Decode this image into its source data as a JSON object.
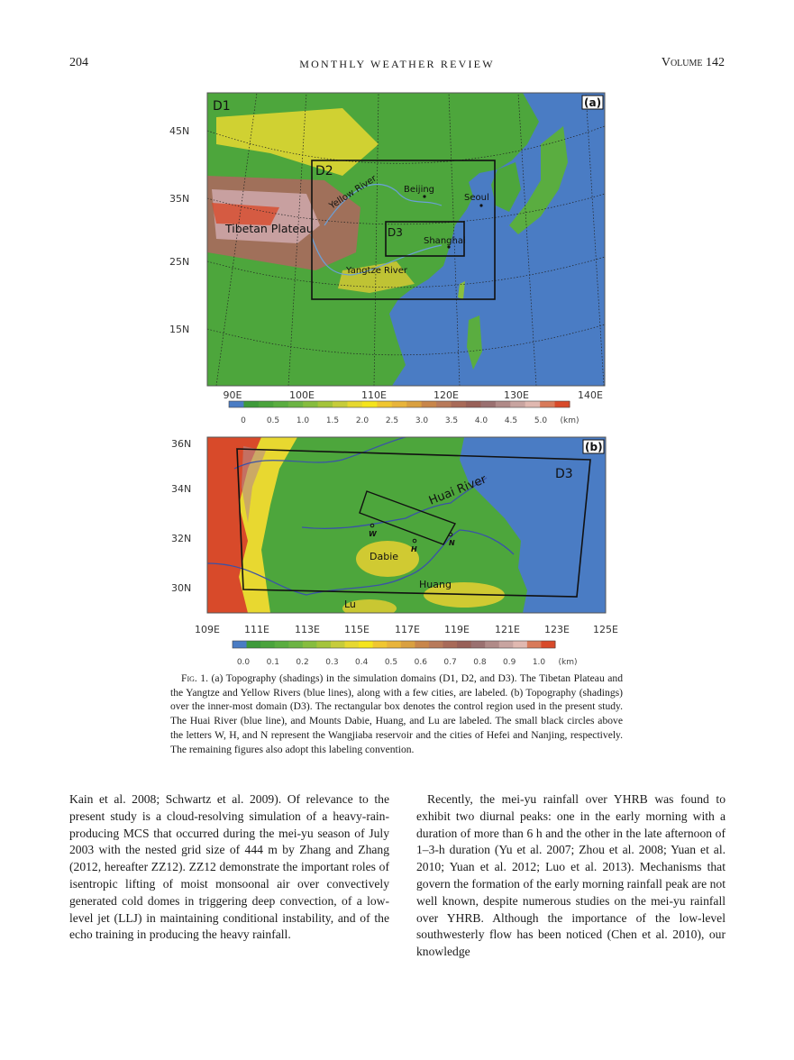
{
  "header": {
    "page_number": "204",
    "journal": "MONTHLY WEATHER REVIEW",
    "volume": "Volume 142"
  },
  "figure": {
    "panel_a": {
      "tag": "(a)",
      "domain_labels": [
        "D1",
        "D2",
        "D3"
      ],
      "place_labels": {
        "tibet": "Tibetan Plateau",
        "yellow": "Yellow River",
        "yangtze": "Yangtze River",
        "beijing": "Beijing",
        "seoul": "Seoul",
        "shanghai": "Shanghai"
      },
      "lat_ticks": [
        "45N",
        "35N",
        "25N",
        "15N"
      ],
      "lon_ticks": [
        "90E",
        "100E",
        "110E",
        "120E",
        "130E",
        "140E"
      ],
      "colorbar_ticks": [
        "0",
        "0.5",
        "1.0",
        "1.5",
        "2.0",
        "2.5",
        "3.0",
        "3.5",
        "4.0",
        "4.5",
        "5.0"
      ],
      "colorbar_unit": "(km)"
    },
    "panel_b": {
      "tag": "(b)",
      "domain_label": "D3",
      "place_labels": {
        "huai": "Huai River",
        "dabie": "Dabie",
        "huang": "Huang",
        "lu": "Lu",
        "w": "W",
        "h": "H",
        "n": "N"
      },
      "lat_ticks": [
        "36N",
        "34N",
        "32N",
        "30N"
      ],
      "lon_ticks": [
        "109E",
        "111E",
        "113E",
        "115E",
        "117E",
        "119E",
        "121E",
        "123E",
        "125E"
      ],
      "colorbar_ticks": [
        "0.0",
        "0.1",
        "0.2",
        "0.3",
        "0.4",
        "0.5",
        "0.6",
        "0.7",
        "0.8",
        "0.9",
        "1.0"
      ],
      "colorbar_unit": "(km)"
    },
    "colorbar_colors": [
      "#4a7cc4",
      "#3e9a3a",
      "#4aa33c",
      "#5aad40",
      "#6cb444",
      "#86bd3e",
      "#a4c43a",
      "#c6cc3a",
      "#e6d830",
      "#f5e41c",
      "#f0c630",
      "#e8b43a",
      "#d9a040",
      "#c8864a",
      "#b87a5a",
      "#a86a58",
      "#986058",
      "#9a7070",
      "#b08a88",
      "#c8a4a0",
      "#e0b8b0",
      "#d87a5a",
      "#d84a2a"
    ],
    "caption_label": "Fig. 1.",
    "caption_text": " (a) Topography (shadings) in the simulation domains (D1, D2, and D3). The Tibetan Plateau and the Yangtze and Yellow Rivers (blue lines), along with a few cities, are labeled. (b) Topography (shadings) over the inner-most domain (D3). The rectangular box denotes the control region used in the present study. The Huai River (blue line), and Mounts Dabie, Huang, and Lu are labeled. The small black circles above the letters W, H, and N represent the Wangjiaba reservoir and the cities of Hefei and Nanjing, respectively. The remaining figures also adopt this labeling convention."
  },
  "body": {
    "left_column": "Kain et al. 2008; Schwartz et al. 2009). Of relevance to the present study is a cloud-resolving simulation of a heavy-rain-producing MCS that occurred during the mei-yu season of July 2003 with the nested grid size of 444 m by Zhang and Zhang (2012, hereafter ZZ12). ZZ12 demonstrate the important roles of isentropic lifting of moist monsoonal air over convectively generated cold domes in triggering deep convection, of a low-level jet (LLJ) in maintaining conditional instability, and of the echo training in producing the heavy rainfall.",
    "right_column": "Recently, the mei-yu rainfall over YHRB was found to exhibit two diurnal peaks: one in the early morning with a duration of more than 6 h and the other in the late afternoon of 1–3-h duration (Yu et al. 2007; Zhou et al. 2008; Yuan et al. 2010; Yuan et al. 2012; Luo et al. 2013). Mechanisms that govern the formation of the early morning rainfall peak are not well known, despite numerous studies on the mei-yu rainfall over YHRB. Although the importance of the low-level southwesterly flow has been noticed (Chen et al. 2010), our knowledge"
  }
}
